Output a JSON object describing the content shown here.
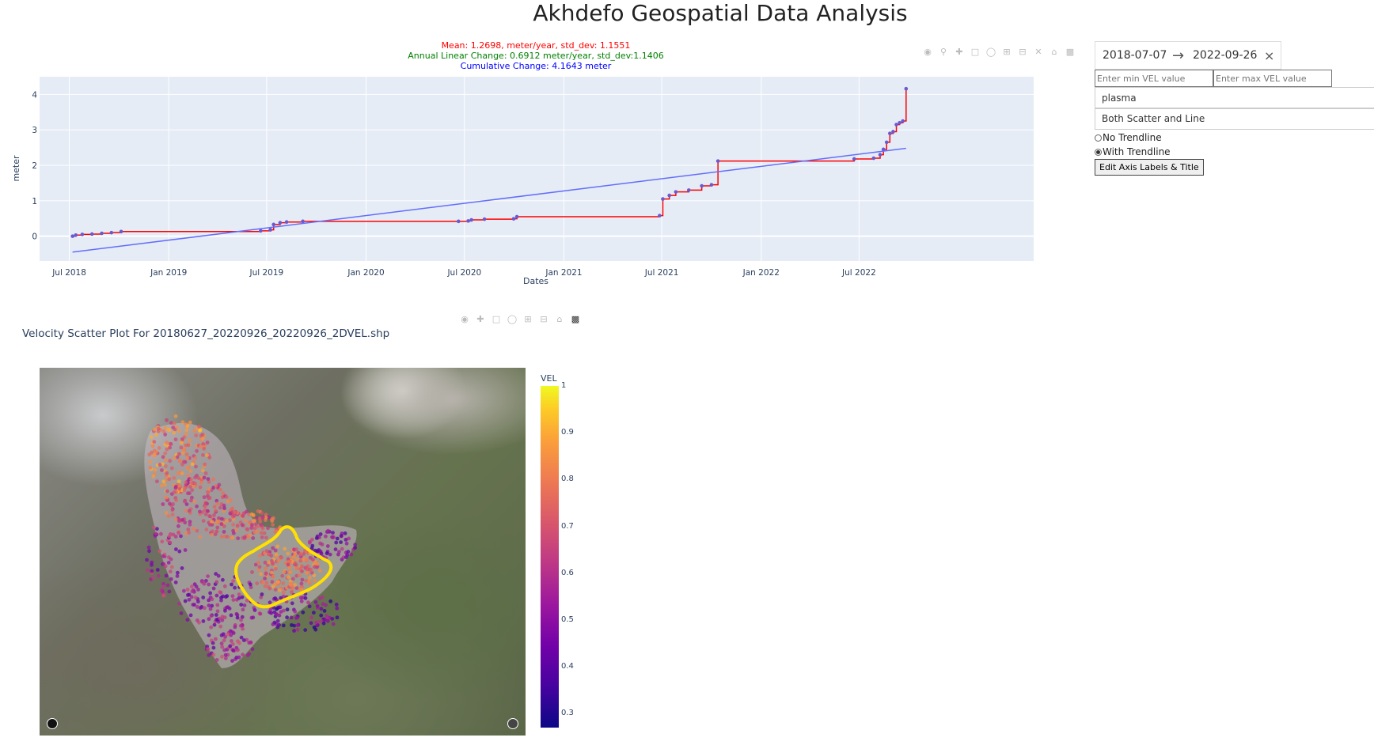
{
  "page": {
    "title": "Akhdefo Geospatial Data Analysis"
  },
  "timeseries": {
    "stats": {
      "mean": "Mean: 1.2698, meter/year, std_dev: 1.1551",
      "linear": "Annual Linear Change: 0.6912 meter/year, std_dev:1.1406",
      "cumulative": "Cumulative Change: 4.1643 meter",
      "mean_color": "#ff0000",
      "linear_color": "#008000",
      "cumulative_color": "#0000ff"
    },
    "modebar_icons": [
      "camera-icon",
      "zoom-icon",
      "pan-icon",
      "box-select-icon",
      "lasso-icon",
      "zoom-in-icon",
      "zoom-out-icon",
      "autoscale-icon",
      "home-icon",
      "plotly-logo-icon"
    ]
  },
  "chart_data": {
    "type": "line",
    "xlabel": "Dates",
    "ylabel": "meter",
    "x_ticks": [
      "Jul 2018",
      "Jan 2019",
      "Jul 2019",
      "Jan 2020",
      "Jul 2020",
      "Jan 2021",
      "Jul 2021",
      "Jan 2022",
      "Jul 2022"
    ],
    "y_ticks": [
      0,
      1,
      2,
      3,
      4
    ],
    "ylim": [
      -0.7,
      4.5
    ],
    "xlim": [
      "2018-05-07",
      "2023-05-20"
    ],
    "grid": true,
    "series": [
      {
        "mode": "lines+markers",
        "color": "#ff0000",
        "marker_color": "#6a5acd",
        "x": [
          "2018-07-07",
          "2018-07-13",
          "2018-07-25",
          "2018-08-12",
          "2018-08-30",
          "2018-09-17",
          "2018-10-05",
          "2019-06-20",
          "2019-07-08",
          "2019-07-14",
          "2019-07-26",
          "2019-08-07",
          "2019-09-06",
          "2020-06-20",
          "2020-07-08",
          "2020-07-14",
          "2020-08-07",
          "2020-09-30",
          "2020-10-06",
          "2021-06-27",
          "2021-07-03",
          "2021-07-15",
          "2021-07-27",
          "2021-08-20",
          "2021-09-13",
          "2021-10-01",
          "2021-10-13",
          "2022-06-22",
          "2022-07-28",
          "2022-08-09",
          "2022-08-15",
          "2022-08-21",
          "2022-08-27",
          "2022-09-02",
          "2022-09-08",
          "2022-09-14",
          "2022-09-20",
          "2022-09-26"
        ],
        "y": [
          0.0,
          0.03,
          0.05,
          0.06,
          0.08,
          0.1,
          0.13,
          0.15,
          0.18,
          0.33,
          0.38,
          0.4,
          0.42,
          0.42,
          0.43,
          0.46,
          0.48,
          0.49,
          0.55,
          0.58,
          1.05,
          1.15,
          1.25,
          1.3,
          1.42,
          1.45,
          2.12,
          2.18,
          2.2,
          2.3,
          2.45,
          2.65,
          2.9,
          2.95,
          3.15,
          3.2,
          3.25,
          4.16
        ]
      },
      {
        "mode": "lines",
        "color": "#636efa",
        "x": [
          "2018-07-07",
          "2022-09-26"
        ],
        "y": [
          -0.45,
          2.48
        ]
      }
    ]
  },
  "controls": {
    "date_start": "2018-07-07",
    "date_arrow": "→",
    "date_end": "2022-09-26",
    "date_clear": "×",
    "min_placeholder": "Enter min VEL value",
    "max_placeholder": "Enter max VEL value",
    "colorscale": "plasma",
    "plot_mode": "Both Scatter and Line",
    "radio_no": "No Trendline",
    "radio_with": "With Trendline",
    "edit_button": "Edit Axis Labels & Title"
  },
  "map": {
    "title": "Velocity Scatter Plot For 20180627_20220926_20220926_2DVEL.shp",
    "colorbar_title": "VEL",
    "colorbar_ticks": [
      "1",
      "0.9",
      "0.8",
      "0.7",
      "0.6",
      "0.5",
      "0.4",
      "0.3"
    ],
    "colorbar_range": [
      0.27,
      1.0
    ],
    "highlight_color": "#ffe000"
  }
}
